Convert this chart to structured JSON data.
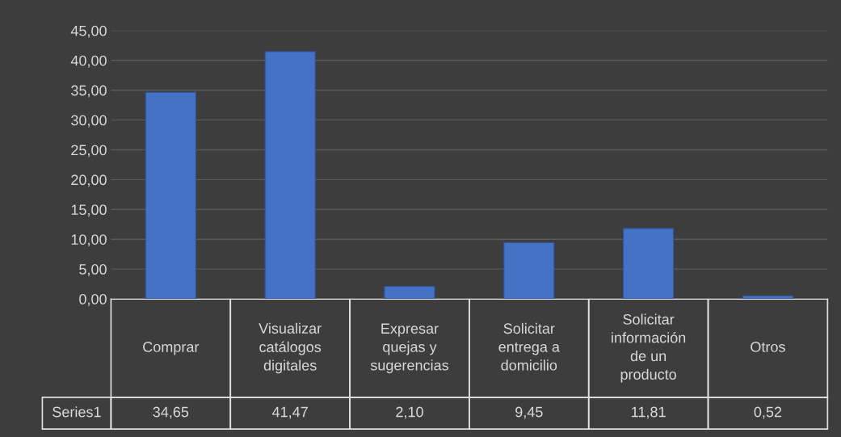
{
  "chart_data": {
    "type": "bar",
    "categories": [
      "Comprar",
      "Visualizar catálogos digitales",
      "Expresar quejas y sugerencias",
      "Solicitar entrega a domicilio",
      "Solicitar información de un producto",
      "Otros"
    ],
    "series": [
      {
        "name": "Series1",
        "color": "#4472c4",
        "values": [
          34.65,
          41.47,
          2.1,
          9.45,
          11.81,
          0.52
        ],
        "value_labels": [
          "34,65",
          "41,47",
          "2,10",
          "9,45",
          "11,81",
          "0,52"
        ]
      }
    ],
    "ylim": [
      0,
      45
    ],
    "yticks": [
      {
        "value": 0,
        "label": "0,00"
      },
      {
        "value": 5,
        "label": "5,00"
      },
      {
        "value": 10,
        "label": "10,00"
      },
      {
        "value": 15,
        "label": "15,00"
      },
      {
        "value": 20,
        "label": "20,00"
      },
      {
        "value": 25,
        "label": "25,00"
      },
      {
        "value": 30,
        "label": "30,00"
      },
      {
        "value": 35,
        "label": "35,00"
      },
      {
        "value": 40,
        "label": "40,00"
      },
      {
        "value": 45,
        "label": "45,00"
      }
    ],
    "grid": "y"
  }
}
